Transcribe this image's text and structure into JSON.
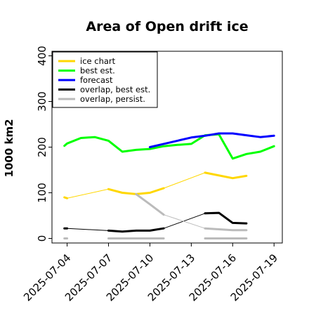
{
  "chart_data": {
    "type": "line",
    "title": "Area of Open drift ice",
    "ylabel": "1000 km2",
    "xlabel": "",
    "ylim": [
      -10,
      410
    ],
    "yticks": [
      0,
      100,
      200,
      300,
      400
    ],
    "xticks": [
      "2025-07-04",
      "2025-07-07",
      "2025-07-10",
      "2025-07-13",
      "2025-07-16",
      "2025-07-19"
    ],
    "xtick_colors": [
      "#000000",
      "#000000",
      "#228b22",
      "#000000",
      "#000000",
      "#000000"
    ],
    "xlim_days": [
      2.9,
      19.6
    ],
    "legend_position": "upper-left",
    "series": [
      {
        "name": "ice chart",
        "color": "#ffd700",
        "width": 3,
        "x": [
          3.8,
          4.0
        ],
        "y": [
          90,
          88
        ]
      },
      {
        "name": "ice chart",
        "color": "#ffd700",
        "width": 1,
        "x": [
          4.0,
          7.0,
          8.0,
          9.0,
          10.0,
          11.0,
          14.0,
          16.0,
          17.0
        ],
        "y": [
          88,
          108,
          100,
          97,
          100,
          110,
          144,
          132,
          137
        ]
      },
      {
        "name": "ice chart",
        "color": "#ffd700",
        "width": 3,
        "x": [
          7.0,
          8.0,
          9.0,
          10.0,
          11.0
        ],
        "y": [
          108,
          100,
          97,
          100,
          110
        ]
      },
      {
        "name": "ice chart",
        "color": "#ffd700",
        "width": 3,
        "x": [
          14.0,
          16.0,
          17.0
        ],
        "y": [
          144,
          132,
          137
        ]
      },
      {
        "name": "best est.",
        "color": "#00ff00",
        "width": 3,
        "x": [
          3.8,
          4.0,
          5.0,
          6.0,
          7.0,
          8.0,
          9.0,
          10.0,
          11.0,
          12.0,
          13.0,
          14.0,
          15.0,
          16.0,
          17.0,
          18.0,
          19.0
        ],
        "y": [
          203,
          208,
          220,
          222,
          214,
          190,
          194,
          196,
          202,
          205,
          207,
          226,
          228,
          175,
          185,
          190,
          202
        ]
      },
      {
        "name": "forecast",
        "color": "#0000ff",
        "width": 3,
        "x": [
          10.0,
          11.0,
          12.0,
          13.0,
          14.0,
          15.0,
          16.0,
          17.0,
          18.0,
          19.0
        ],
        "y": [
          200,
          207,
          214,
          221,
          225,
          230,
          230,
          226,
          222,
          225
        ]
      },
      {
        "name": "overlap, best est.",
        "color": "#000000",
        "width": 3,
        "x": [
          3.8,
          4.0
        ],
        "y": [
          22,
          22
        ]
      },
      {
        "name": "overlap, best est.",
        "color": "#000000",
        "width": 1,
        "x": [
          4.0,
          7.0,
          8.0,
          9.0,
          10.0,
          11.0,
          14.0,
          15.0,
          16.0,
          17.0
        ],
        "y": [
          22,
          17,
          15,
          17,
          17,
          22,
          55,
          56,
          34,
          33
        ]
      },
      {
        "name": "overlap, best est.",
        "color": "#000000",
        "width": 3,
        "x": [
          7.0,
          8.0,
          9.0,
          10.0,
          11.0
        ],
        "y": [
          17,
          15,
          17,
          17,
          22
        ]
      },
      {
        "name": "overlap, best est.",
        "color": "#000000",
        "width": 3,
        "x": [
          14.0,
          15.0,
          16.0,
          17.0
        ],
        "y": [
          55,
          56,
          34,
          33
        ]
      },
      {
        "name": "overlap, persist.",
        "color": "#bbbbbb",
        "width": 3,
        "x": [
          3.8,
          4.0
        ],
        "y": [
          0,
          0
        ]
      },
      {
        "name": "overlap, persist.",
        "color": "#bbbbbb",
        "width": 3,
        "x": [
          7.0,
          11.0
        ],
        "y": [
          0,
          0
        ]
      },
      {
        "name": "overlap, persist.",
        "color": "#bbbbbb",
        "width": 3,
        "x": [
          14.0,
          17.0
        ],
        "y": [
          0,
          0
        ]
      },
      {
        "name": "overlap, persist.",
        "color": "#bbbbbb",
        "width": 3,
        "x": [
          9.0,
          10.0,
          11.0
        ],
        "y": [
          97,
          75,
          52
        ]
      },
      {
        "name": "overlap, persist.",
        "color": "#bbbbbb",
        "width": 1,
        "x": [
          11.0,
          14.0
        ],
        "y": [
          52,
          22
        ]
      },
      {
        "name": "overlap, persist.",
        "color": "#bbbbbb",
        "width": 3,
        "x": [
          14.0,
          15.0,
          16.0,
          17.0
        ],
        "y": [
          22,
          20,
          18,
          18
        ]
      }
    ],
    "legend": [
      {
        "label": "ice chart",
        "color": "#ffd700"
      },
      {
        "label": "best est.",
        "color": "#00ff00"
      },
      {
        "label": "forecast",
        "color": "#0000ff"
      },
      {
        "label": "overlap, best est.",
        "color": "#000000"
      },
      {
        "label": "overlap, persist.",
        "color": "#bbbbbb"
      }
    ]
  }
}
